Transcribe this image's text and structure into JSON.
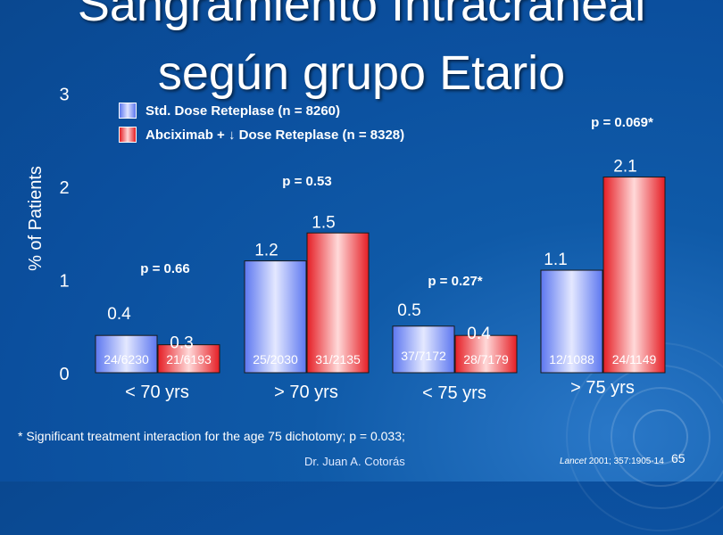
{
  "slide": {
    "title_line1": "Sangramiento Intracraneal",
    "title_line2": "según grupo Etario",
    "footnote": "* Significant treatment interaction for the age 75 dichotomy; p = 0.033;",
    "author": "Dr.  Juan A. Cotorás",
    "reference_journal": "Lancet",
    "reference_detail": " 2001; 357:1905-14",
    "page_number": "65"
  },
  "colors": {
    "blue": "#5c77f0",
    "blue_light": "#e4e8ff",
    "red": "#e51e25",
    "red_light": "#ffd9d9"
  },
  "chart_data": {
    "type": "bar",
    "title": "Sangramiento Intracraneal según grupo Etario",
    "ylabel": "% of Patients",
    "xlabel": "",
    "ylim": [
      0,
      3
    ],
    "yticks": [
      0,
      1,
      2,
      3
    ],
    "grid": false,
    "legend_position": "top-left",
    "categories": [
      "< 70 yrs",
      "> 70 yrs",
      "< 75 yrs",
      "> 75 yrs"
    ],
    "series": [
      {
        "name": "Std. Dose Reteplase (n = 8260)",
        "values": [
          0.4,
          1.2,
          0.5,
          1.1
        ],
        "value_labels": [
          "0.4",
          "1.2",
          "0.5",
          "1.1"
        ],
        "counts": [
          "24/6230",
          "25/2030",
          "37/7172",
          "12/1088"
        ]
      },
      {
        "name": "Abciximab + ↓ Dose Reteplase (n = 8328)",
        "values": [
          0.3,
          1.5,
          0.4,
          2.1
        ],
        "value_labels": [
          "0.3",
          "1.5",
          "0.4",
          "2.1"
        ],
        "counts": [
          "21/6193",
          "31/2135",
          "28/7179",
          "24/1149"
        ]
      }
    ],
    "annotations": [
      "p = 0.66",
      "p = 0.53",
      "p = 0.27*",
      "p = 0.069*"
    ]
  }
}
